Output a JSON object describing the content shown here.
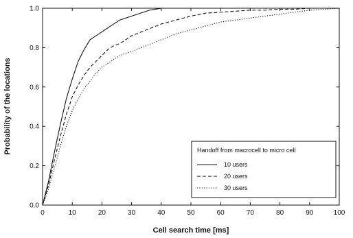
{
  "chart_data": {
    "type": "line",
    "title": "",
    "xlabel": "Cell search time [ms]",
    "ylabel": "Probability of the locations",
    "xlim": [
      0,
      100
    ],
    "ylim": [
      0,
      1.0
    ],
    "x_ticks": [
      0,
      10,
      20,
      30,
      40,
      50,
      60,
      70,
      80,
      90,
      100
    ],
    "y_ticks": [
      0.0,
      0.2,
      0.4,
      0.6,
      0.8,
      1.0
    ],
    "x_tick_labels": [
      "0",
      "10",
      "20",
      "30",
      "40",
      "50",
      "60",
      "70",
      "80",
      "90",
      "100"
    ],
    "y_tick_labels": [
      "0.0",
      "0.2",
      "0.4",
      "0.6",
      "0.8",
      "1.0"
    ],
    "grid": false,
    "legend": {
      "title": "Handoff from macrocell to micro cell",
      "placement": "bottom-right"
    },
    "series": [
      {
        "name": "10 users",
        "style": "solid",
        "x": [
          0,
          2,
          4,
          6,
          8,
          10,
          12,
          14,
          16,
          18,
          20,
          22,
          24,
          26,
          28,
          30,
          32,
          34,
          36,
          38,
          40,
          45,
          50,
          60,
          70,
          80,
          90,
          100
        ],
        "y": [
          0.0,
          0.12,
          0.27,
          0.41,
          0.54,
          0.64,
          0.73,
          0.79,
          0.84,
          0.86,
          0.88,
          0.9,
          0.92,
          0.94,
          0.95,
          0.96,
          0.97,
          0.98,
          0.99,
          0.995,
          1.0,
          1.0,
          1.0,
          1.0,
          1.0,
          1.0,
          1.0,
          1.0
        ]
      },
      {
        "name": "20 users",
        "style": "dashed",
        "x": [
          0,
          2,
          4,
          6,
          8,
          10,
          12,
          14,
          16,
          18,
          20,
          22,
          24,
          26,
          28,
          30,
          35,
          40,
          45,
          50,
          55,
          60,
          65,
          70,
          75,
          80,
          85,
          90,
          95,
          100
        ],
        "y": [
          0.0,
          0.1,
          0.23,
          0.35,
          0.46,
          0.55,
          0.61,
          0.66,
          0.7,
          0.73,
          0.76,
          0.79,
          0.81,
          0.82,
          0.84,
          0.86,
          0.89,
          0.92,
          0.94,
          0.96,
          0.975,
          0.98,
          0.985,
          0.99,
          0.99,
          0.995,
          0.995,
          1.0,
          1.0,
          1.0
        ]
      },
      {
        "name": "30 users",
        "style": "dotted",
        "x": [
          0,
          2,
          4,
          6,
          8,
          10,
          12,
          14,
          16,
          18,
          20,
          22,
          24,
          26,
          28,
          30,
          35,
          40,
          45,
          50,
          55,
          60,
          65,
          70,
          75,
          80,
          85,
          90,
          95,
          100
        ],
        "y": [
          0.0,
          0.08,
          0.19,
          0.3,
          0.4,
          0.48,
          0.54,
          0.59,
          0.63,
          0.67,
          0.7,
          0.72,
          0.74,
          0.76,
          0.77,
          0.78,
          0.81,
          0.84,
          0.87,
          0.89,
          0.91,
          0.93,
          0.94,
          0.95,
          0.96,
          0.97,
          0.98,
          0.99,
          0.995,
          1.0
        ]
      }
    ]
  }
}
